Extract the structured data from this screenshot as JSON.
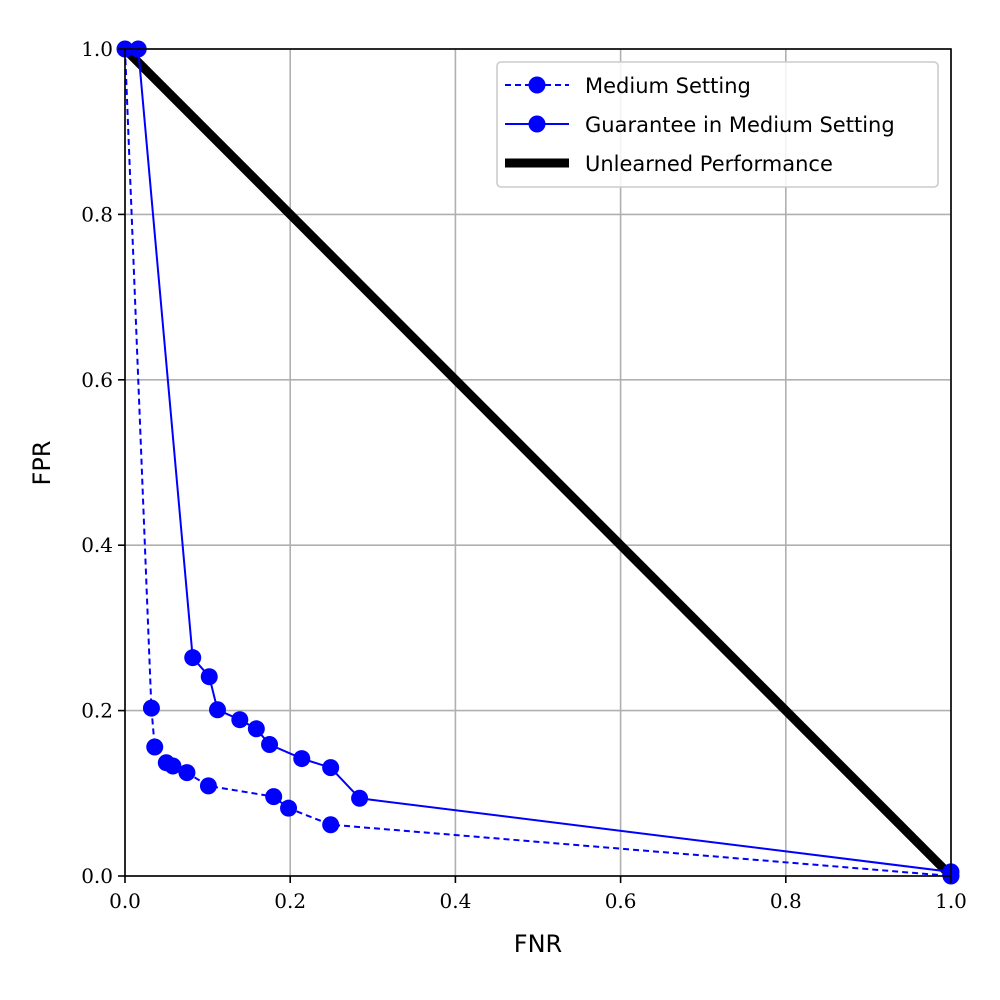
{
  "chart_data": {
    "type": "line",
    "title": "",
    "xlabel": "FNR",
    "ylabel": "FPR",
    "xlim": [
      0,
      1
    ],
    "ylim": [
      0,
      1
    ],
    "xticks": [
      "0.0",
      "0.2",
      "0.4",
      "0.6",
      "0.8",
      "1.0"
    ],
    "yticks": [
      "0.0",
      "0.2",
      "0.4",
      "0.6",
      "0.8",
      "1.0"
    ],
    "grid": true,
    "legend_position": "top-right",
    "series": [
      {
        "name": "Medium Setting",
        "style": "dashed",
        "marker": "circle",
        "color": "#0000ff",
        "x": [
          0.0,
          0.032,
          0.036,
          0.05,
          0.058,
          0.075,
          0.101,
          0.18,
          0.198,
          0.249,
          1.0
        ],
        "y": [
          1.0,
          0.203,
          0.156,
          0.137,
          0.133,
          0.125,
          0.109,
          0.096,
          0.082,
          0.062,
          0.0
        ]
      },
      {
        "name": "Guarantee in Medium Setting",
        "style": "solid",
        "marker": "circle",
        "color": "#0000ff",
        "x": [
          0.016,
          0.082,
          0.102,
          0.112,
          0.139,
          0.159,
          0.175,
          0.214,
          0.249,
          0.284,
          1.0
        ],
        "y": [
          1.0,
          0.264,
          0.241,
          0.201,
          0.189,
          0.178,
          0.159,
          0.142,
          0.131,
          0.094,
          0.005
        ]
      },
      {
        "name": "Unlearned Performance",
        "style": "solid-thick",
        "marker": "none",
        "color": "#000000",
        "x": [
          0.0,
          1.0
        ],
        "y": [
          1.0,
          0.0
        ]
      }
    ]
  }
}
